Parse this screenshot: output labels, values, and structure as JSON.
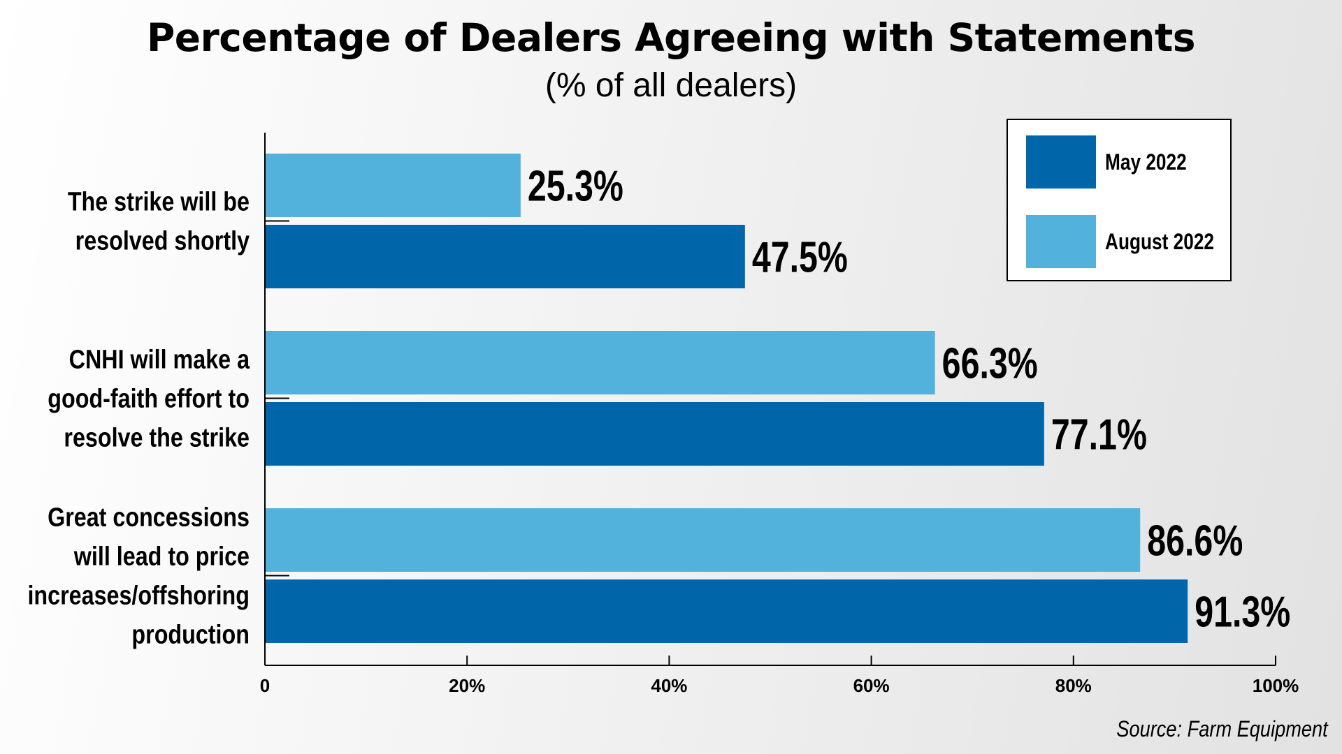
{
  "chart_data": {
    "type": "bar",
    "orientation": "horizontal",
    "title": "Percentage of Dealers Agreeing with Statements",
    "subtitle": "(% of all dealers)",
    "categories": [
      [
        "The strike will be",
        "resolved shortly"
      ],
      [
        "CNHI will make a",
        "good-faith effort to",
        "resolve the strike"
      ],
      [
        "Great concessions",
        "will lead to price",
        "increases/offshoring",
        "production"
      ]
    ],
    "series": [
      {
        "name": "August 2022",
        "color": "#53b2db",
        "values": [
          25.3,
          66.3,
          86.6
        ],
        "labels": [
          "25.3%",
          "66.3%",
          "86.6%"
        ]
      },
      {
        "name": "May 2022",
        "color": "#0066aa",
        "values": [
          47.5,
          77.1,
          91.3
        ],
        "labels": [
          "47.5%",
          "77.1%",
          "91.3%"
        ]
      }
    ],
    "xlim": [
      0,
      100
    ],
    "xticks": [
      "0",
      "20%",
      "40%",
      "60%",
      "80%",
      "100%"
    ],
    "legend_order": [
      "May 2022",
      "August 2022"
    ],
    "legend_position": "top-right",
    "grid": false
  },
  "source": "Source: Farm Equipment"
}
